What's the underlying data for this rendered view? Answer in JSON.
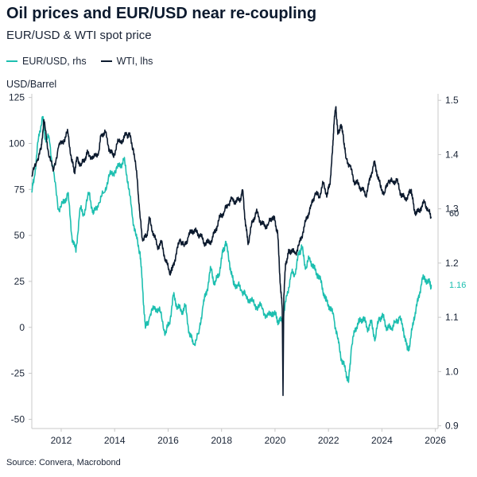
{
  "header": {
    "title": "Oil prices and EUR/USD near re-coupling",
    "subtitle": "EUR/USD & WTI spot price"
  },
  "legend": {
    "eurusd": "EUR/USD, rhs",
    "wti": "WTI, lhs"
  },
  "unit_label": "USD/Barrel",
  "source": "Source: Convera, Macrobond",
  "colors": {
    "eurusd": "#1dbfb0",
    "wti": "#0c1a2e",
    "axis": "#c8c8c8",
    "text": "#1a2436"
  },
  "chart_data": {
    "type": "line",
    "x_range": [
      2010.9,
      2026.1
    ],
    "x_ticks": [
      "2012",
      "2014",
      "2016",
      "2018",
      "2020",
      "2022",
      "2024",
      "2026"
    ],
    "y_left": {
      "label": "USD/Barrel",
      "range": [
        -55,
        127
      ],
      "ticks": [
        "125",
        "100",
        "75",
        "50",
        "25",
        "0",
        "-25",
        "-50"
      ]
    },
    "y_right": {
      "range": [
        0.895,
        1.512
      ],
      "ticks": [
        "1.5",
        "1.4",
        "1.3",
        "1.2",
        "1.1",
        "1.0",
        "0.9"
      ]
    },
    "end_labels": {
      "wti": "60",
      "eurusd": "1.16"
    },
    "series": [
      {
        "name": "WTI, lhs",
        "axis": "left",
        "x": [
          2010.9,
          2011.1,
          2011.25,
          2011.35,
          2011.5,
          2011.7,
          2011.9,
          2012.1,
          2012.25,
          2012.4,
          2012.5,
          2012.6,
          2012.75,
          2012.9,
          2013.0,
          2013.2,
          2013.4,
          2013.5,
          2013.65,
          2013.8,
          2013.95,
          2014.1,
          2014.3,
          2014.45,
          2014.55,
          2014.7,
          2014.85,
          2014.95,
          2015.05,
          2015.2,
          2015.3,
          2015.45,
          2015.6,
          2015.75,
          2015.9,
          2016.05,
          2016.15,
          2016.3,
          2016.45,
          2016.6,
          2016.75,
          2016.9,
          2017.05,
          2017.2,
          2017.35,
          2017.5,
          2017.65,
          2017.8,
          2017.95,
          2018.1,
          2018.25,
          2018.4,
          2018.55,
          2018.7,
          2018.8,
          2018.9,
          2019.0,
          2019.15,
          2019.3,
          2019.45,
          2019.6,
          2019.75,
          2019.9,
          2020.0,
          2020.1,
          2020.2,
          2020.27,
          2020.3,
          2020.33,
          2020.4,
          2020.5,
          2020.6,
          2020.75,
          2020.9,
          2021.05,
          2021.2,
          2021.35,
          2021.5,
          2021.65,
          2021.8,
          2021.95,
          2022.05,
          2022.15,
          2022.2,
          2022.28,
          2022.35,
          2022.45,
          2022.55,
          2022.65,
          2022.8,
          2022.95,
          2023.1,
          2023.25,
          2023.4,
          2023.55,
          2023.7,
          2023.8,
          2023.95,
          2024.1,
          2024.25,
          2024.4,
          2024.55,
          2024.7,
          2024.85,
          2025.0,
          2025.1,
          2025.2,
          2025.3,
          2025.45,
          2025.6,
          2025.75,
          2025.85
        ],
        "values": [
          82,
          91,
          97,
          113,
          97,
          85,
          98,
          102,
          106,
          90,
          85,
          92,
          88,
          92,
          95,
          92,
          95,
          105,
          106,
          97,
          93,
          100,
          102,
          105,
          105,
          97,
          80,
          60,
          47,
          50,
          59,
          51,
          44,
          46,
          37,
          30,
          31,
          40,
          48,
          44,
          49,
          53,
          52,
          50,
          46,
          46,
          48,
          54,
          60,
          63,
          67,
          70,
          68,
          70,
          74,
          55,
          46,
          57,
          63,
          58,
          55,
          56,
          60,
          58,
          51,
          23,
          10,
          -37,
          17,
          35,
          40,
          42,
          40,
          45,
          52,
          60,
          66,
          73,
          71,
          78,
          72,
          78,
          95,
          110,
          120,
          105,
          110,
          105,
          92,
          88,
          80,
          78,
          75,
          72,
          80,
          90,
          85,
          76,
          73,
          80,
          79,
          80,
          73,
          70,
          72,
          75,
          64,
          62,
          65,
          68,
          63,
          60
        ]
      },
      {
        "name": "EUR/USD, rhs",
        "axis": "right",
        "x": [
          2010.9,
          2011.0,
          2011.15,
          2011.3,
          2011.4,
          2011.55,
          2011.7,
          2011.9,
          2012.1,
          2012.25,
          2012.4,
          2012.55,
          2012.7,
          2012.85,
          2013.05,
          2013.2,
          2013.4,
          2013.6,
          2013.8,
          2014.0,
          2014.2,
          2014.35,
          2014.5,
          2014.65,
          2014.8,
          2014.95,
          2015.05,
          2015.15,
          2015.3,
          2015.5,
          2015.7,
          2015.9,
          2016.05,
          2016.2,
          2016.35,
          2016.5,
          2016.65,
          2016.8,
          2016.95,
          2017.15,
          2017.3,
          2017.45,
          2017.6,
          2017.75,
          2017.9,
          2018.05,
          2018.15,
          2018.3,
          2018.45,
          2018.6,
          2018.75,
          2018.9,
          2019.1,
          2019.3,
          2019.5,
          2019.7,
          2019.9,
          2020.05,
          2020.15,
          2020.3,
          2020.45,
          2020.6,
          2020.75,
          2020.9,
          2021.0,
          2021.15,
          2021.3,
          2021.45,
          2021.6,
          2021.75,
          2021.9,
          2022.05,
          2022.2,
          2022.35,
          2022.5,
          2022.65,
          2022.75,
          2022.85,
          2023.0,
          2023.15,
          2023.3,
          2023.45,
          2023.6,
          2023.75,
          2023.9,
          2024.05,
          2024.2,
          2024.35,
          2024.5,
          2024.65,
          2024.8,
          2024.95,
          2025.05,
          2025.2,
          2025.35,
          2025.5,
          2025.65,
          2025.8,
          2025.85
        ],
        "values": [
          1.33,
          1.36,
          1.43,
          1.47,
          1.43,
          1.43,
          1.37,
          1.3,
          1.31,
          1.33,
          1.25,
          1.22,
          1.3,
          1.29,
          1.33,
          1.29,
          1.31,
          1.33,
          1.36,
          1.37,
          1.38,
          1.39,
          1.35,
          1.29,
          1.25,
          1.22,
          1.15,
          1.08,
          1.1,
          1.12,
          1.11,
          1.07,
          1.09,
          1.14,
          1.12,
          1.11,
          1.12,
          1.07,
          1.05,
          1.07,
          1.12,
          1.15,
          1.19,
          1.16,
          1.18,
          1.22,
          1.24,
          1.2,
          1.16,
          1.16,
          1.15,
          1.14,
          1.13,
          1.12,
          1.12,
          1.1,
          1.11,
          1.1,
          1.09,
          1.1,
          1.14,
          1.18,
          1.18,
          1.22,
          1.23,
          1.19,
          1.21,
          1.19,
          1.18,
          1.16,
          1.13,
          1.12,
          1.1,
          1.06,
          1.02,
          1.0,
          0.98,
          1.04,
          1.08,
          1.09,
          1.1,
          1.08,
          1.09,
          1.06,
          1.1,
          1.1,
          1.08,
          1.08,
          1.09,
          1.1,
          1.08,
          1.04,
          1.05,
          1.1,
          1.13,
          1.17,
          1.17,
          1.16,
          1.16
        ]
      }
    ]
  }
}
